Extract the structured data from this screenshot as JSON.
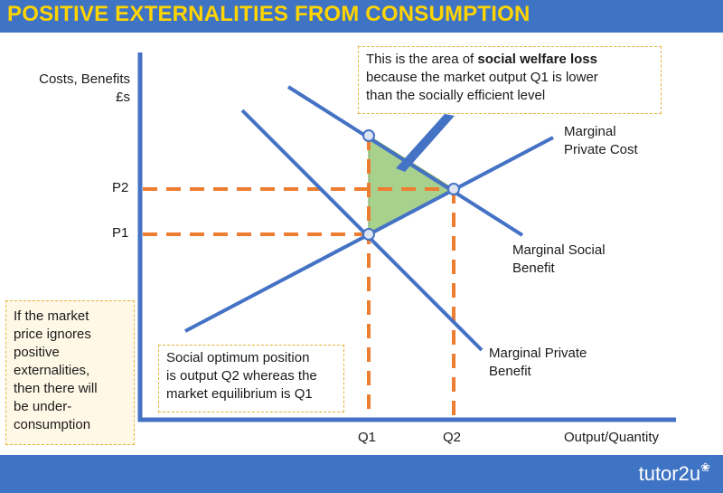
{
  "header": {
    "title": "POSITIVE EXTERNALITIES FROM CONSUMPTION"
  },
  "footer": {
    "brand": "tutor2u"
  },
  "axes": {
    "y_label_line1": "Costs, Benefits",
    "y_label_line2": "£s",
    "x_label": "Output/Quantity"
  },
  "ticks": {
    "p1": "P1",
    "p2": "P2",
    "q1": "Q1",
    "q2": "Q2"
  },
  "curves": {
    "mpc_line1": "Marginal",
    "mpc_line2": "Private Cost",
    "msb_line1": "Marginal Social",
    "msb_line2": "Benefit",
    "mpb_line1": "Marginal Private",
    "mpb_line2": "Benefit"
  },
  "callouts": {
    "top_pre": "This is the area of ",
    "top_bold": "social welfare loss",
    "top_line2": "because the market output Q1 is lower",
    "top_line3": "than the socially efficient level",
    "left_lines": [
      "If the market",
      "price ignores",
      "positive",
      "externalities,",
      "then there will",
      "be under-",
      "consumption"
    ],
    "bottom_line1": "Social optimum position",
    "bottom_line2": "is output Q2 whereas the",
    "bottom_line3": "market equilibrium is Q1"
  },
  "colors": {
    "brand_blue": "#3f73c4",
    "title_yellow": "#ffd400",
    "curve_blue": "#4472c4",
    "dashed_orange": "#ed7d31",
    "welfare_loss_green": "#a9d18e",
    "callout_border": "#e2b33c"
  }
}
